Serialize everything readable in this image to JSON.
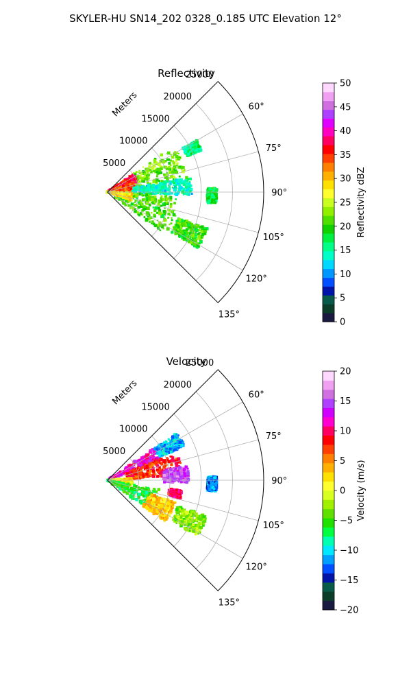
{
  "figure": {
    "suptitle": "SKYLER-HU  SN14_202  0328_0.185 UTC Elevation 12°"
  },
  "chart_data": [
    {
      "type": "polar-sector",
      "title": "Reflectivity",
      "radial_axis_label": "Meters",
      "radial_ticks": [
        5000,
        10000,
        15000,
        20000,
        25000
      ],
      "radial_tick_labels": [
        "5000",
        "10000",
        "15000",
        "20000",
        "25000"
      ],
      "rlim": [
        0,
        25000
      ],
      "angle_range_deg": [
        45,
        135
      ],
      "angle_ticks": [
        60,
        75,
        90,
        105,
        120,
        135
      ],
      "angle_tick_labels": [
        "60°",
        "75°",
        "90°",
        "105°",
        "120°",
        "135°"
      ],
      "grid": true,
      "field_sketch": {
        "description_colors": "reflectivity field colored by dBZ",
        "blobs": [
          {
            "az": [
              55,
              80
            ],
            "r": [
              2000,
              13000
            ],
            "value": 22
          },
          {
            "az": [
              55,
              70
            ],
            "r": [
              0,
              5000
            ],
            "value": 37
          },
          {
            "az": [
              70,
              90
            ],
            "r": [
              0,
              4500
            ],
            "value": 34
          },
          {
            "az": [
              80,
              92
            ],
            "r": [
              4000,
              13500
            ],
            "value": 14
          },
          {
            "az": [
              92,
              126
            ],
            "r": [
              1500,
              11500
            ],
            "value": 21
          },
          {
            "az": [
              92,
              110
            ],
            "r": [
              0,
              4000
            ],
            "value": 28
          },
          {
            "az": [
              88,
              96
            ],
            "r": [
              16000,
              17500
            ],
            "value": 18
          },
          {
            "az": [
              110,
              122
            ],
            "r": [
              12000,
              17000
            ],
            "value": 20
          },
          {
            "az": [
              60,
              66
            ],
            "r": [
              14000,
              16500
            ],
            "value": 16
          }
        ]
      },
      "colorbar": {
        "label": "Reflectivity dBZ",
        "vmin": 0,
        "vmax": 50,
        "ticks": [
          0,
          5,
          10,
          15,
          20,
          25,
          30,
          35,
          40,
          45,
          50
        ],
        "tick_labels": [
          "0",
          "5",
          "10",
          "15",
          "20",
          "25",
          "30",
          "35",
          "40",
          "45",
          "50"
        ],
        "colors": [
          "#1a1a40",
          "#0c3d2a",
          "#085a4a",
          "#0014a8",
          "#0050ff",
          "#0098ff",
          "#00d8ff",
          "#00ffc8",
          "#00ff88",
          "#00f040",
          "#10d000",
          "#50e000",
          "#90f000",
          "#c8ff20",
          "#ffff30",
          "#ffe000",
          "#ffb000",
          "#ff8000",
          "#ff4000",
          "#ff0000",
          "#ff0060",
          "#ff00c0",
          "#e000ff",
          "#b040ff",
          "#d070e0",
          "#f0a0f0",
          "#ffd8ff"
        ]
      }
    },
    {
      "type": "polar-sector",
      "title": "Velocity",
      "radial_axis_label": "Meters",
      "radial_ticks": [
        5000,
        10000,
        15000,
        20000,
        25000
      ],
      "radial_tick_labels": [
        "5000",
        "10000",
        "15000",
        "20000",
        "25000"
      ],
      "rlim": [
        0,
        25000
      ],
      "angle_range_deg": [
        45,
        135
      ],
      "angle_ticks": [
        60,
        75,
        90,
        105,
        120,
        135
      ],
      "angle_tick_labels": [
        "60°",
        "75°",
        "90°",
        "105°",
        "120°",
        "135°"
      ],
      "grid": true,
      "field_sketch": {
        "description_colors": "velocity field colored by m/s",
        "blobs": [
          {
            "az": [
              55,
              70
            ],
            "r": [
              0,
              9000
            ],
            "value": 12
          },
          {
            "az": [
              56,
              66
            ],
            "r": [
              9000,
              13500
            ],
            "value": -11
          },
          {
            "az": [
              68,
              86
            ],
            "r": [
              3000,
              12000
            ],
            "value": 8
          },
          {
            "az": [
              80,
              92
            ],
            "r": [
              9000,
              13000
            ],
            "value": 15
          },
          {
            "az": [
              85,
              102
            ],
            "r": [
              0,
              4000
            ],
            "value": 1
          },
          {
            "az": [
              100,
              126
            ],
            "r": [
              0,
              8500
            ],
            "value": -6
          },
          {
            "az": [
              108,
              126
            ],
            "r": [
              7000,
              11500
            ],
            "value": 3
          },
          {
            "az": [
              98,
              104
            ],
            "r": [
              10000,
              12000
            ],
            "value": 10
          },
          {
            "az": [
              88,
              96
            ],
            "r": [
              16000,
              17500
            ],
            "value": -12
          },
          {
            "az": [
              110,
              122
            ],
            "r": [
              12000,
              17000
            ],
            "value": -3
          }
        ]
      },
      "colorbar": {
        "label": "Velocity (m/s)",
        "vmin": -20,
        "vmax": 20,
        "ticks": [
          -20,
          -15,
          -10,
          -5,
          0,
          5,
          10,
          15,
          20
        ],
        "tick_labels": [
          "−20",
          "−15",
          "−10",
          "−5",
          "0",
          "5",
          "10",
          "15",
          "20"
        ],
        "colors": [
          "#1a1a40",
          "#0c3d2a",
          "#085a4a",
          "#0014a8",
          "#0050ff",
          "#00a0ff",
          "#00e8ff",
          "#00ffb0",
          "#00ff40",
          "#20e000",
          "#60e000",
          "#a0f000",
          "#d8ff20",
          "#ffff30",
          "#ffe000",
          "#ffb000",
          "#ff8000",
          "#ff4000",
          "#ff0000",
          "#ff0060",
          "#ff00d0",
          "#d000ff",
          "#b040ff",
          "#d070e0",
          "#f0a0f0",
          "#ffd8ff"
        ]
      }
    }
  ]
}
